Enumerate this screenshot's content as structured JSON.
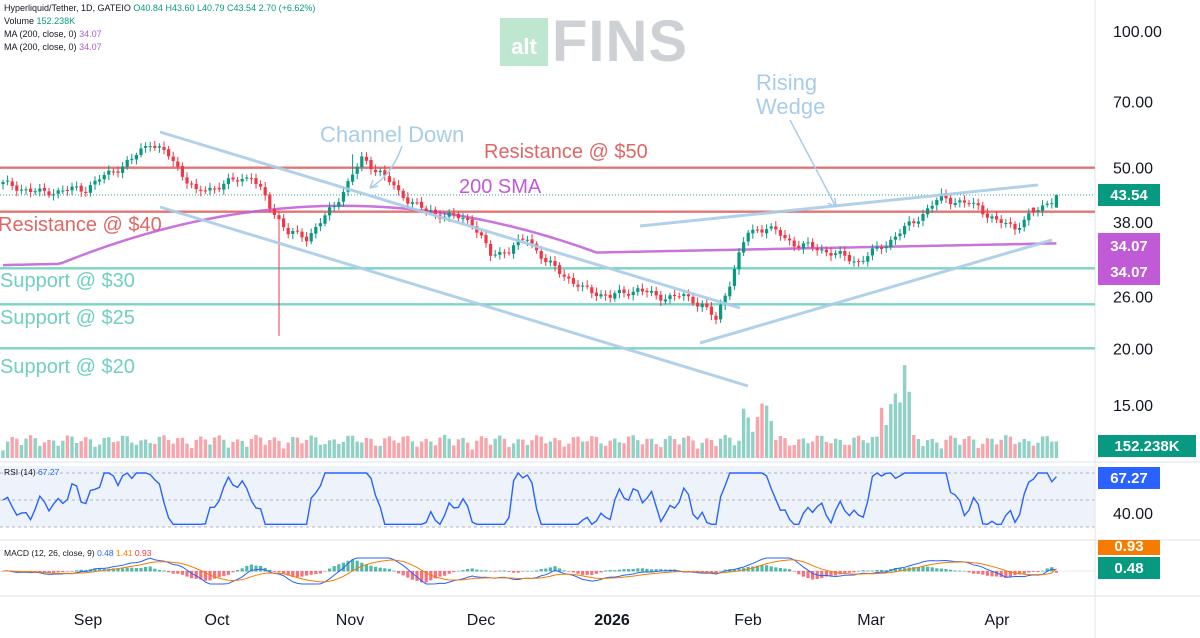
{
  "header": {
    "symbol_line": "Hyperliquid/Tether, 1D, GATEIO",
    "ohlc": {
      "o": "O40.84",
      "h": "H43.60",
      "l": "L40.79",
      "c": "C43.54",
      "chg": "2.70 (+6.62%)"
    },
    "volume_label": "Volume",
    "volume_value": "152.238K",
    "ma1_label": "MA (200, close, 0)",
    "ma1_value": "34.07",
    "ma2_label": "MA (200, close, 0)",
    "ma2_value": "34.07"
  },
  "watermark": {
    "box_text": "alt",
    "text": "FINS"
  },
  "rsi_legend": {
    "label": "RSI (14)",
    "value": "67.27"
  },
  "macd_legend": {
    "label": "MACD (12, 26, close, 9)",
    "v1": "0.48",
    "v2": "1.41",
    "v3": "0.93"
  },
  "badges": {
    "price": "43.54",
    "ma1": "34.07",
    "ma2": "34.07",
    "volume": "152.238K",
    "rsi": "67.27",
    "macd_signal": "0.93",
    "macd": "0.48"
  },
  "colors": {
    "up": "#089981",
    "down": "#f23645",
    "resistance": "#e06666",
    "support": "#6fcfc0",
    "channel": "#a9cde8",
    "sma": "#c05ad6",
    "rsi": "#2962ff",
    "macd_line": "#2962ff",
    "signal_line": "#f57c00",
    "rsi_band": "#eef3fb"
  },
  "chart_data": {
    "type": "candlestick",
    "price_axis": {
      "ticks": [
        100,
        70,
        50,
        38,
        26,
        20,
        15
      ],
      "scale": "log"
    },
    "x_ticks": [
      "Sep",
      "Oct",
      "Nov",
      "Dec",
      "2026",
      "Feb",
      "Mar",
      "Apr"
    ],
    "rsi_axis_label": "40.00",
    "levels": [
      {
        "label": "Resistance @ $50",
        "value": 50,
        "kind": "resistance"
      },
      {
        "label": "Resistance @ $40",
        "value": 40,
        "kind": "resistance"
      },
      {
        "label": "Support @ $30",
        "value": 30,
        "kind": "support"
      },
      {
        "label": "Support @ $25",
        "value": 25,
        "kind": "support"
      },
      {
        "label": "Support @ $20",
        "value": 20,
        "kind": "support"
      }
    ],
    "annotations": {
      "channel": "Channel Down",
      "sma": "200 SMA",
      "wedge_1": "Rising",
      "wedge_2": "Wedge"
    },
    "last_close": 43.54,
    "sma_last": 34.07,
    "rsi_last": 67.27,
    "macd_last": 0.48,
    "macd_signal_last": 0.93,
    "volume_last": "152.238K"
  }
}
